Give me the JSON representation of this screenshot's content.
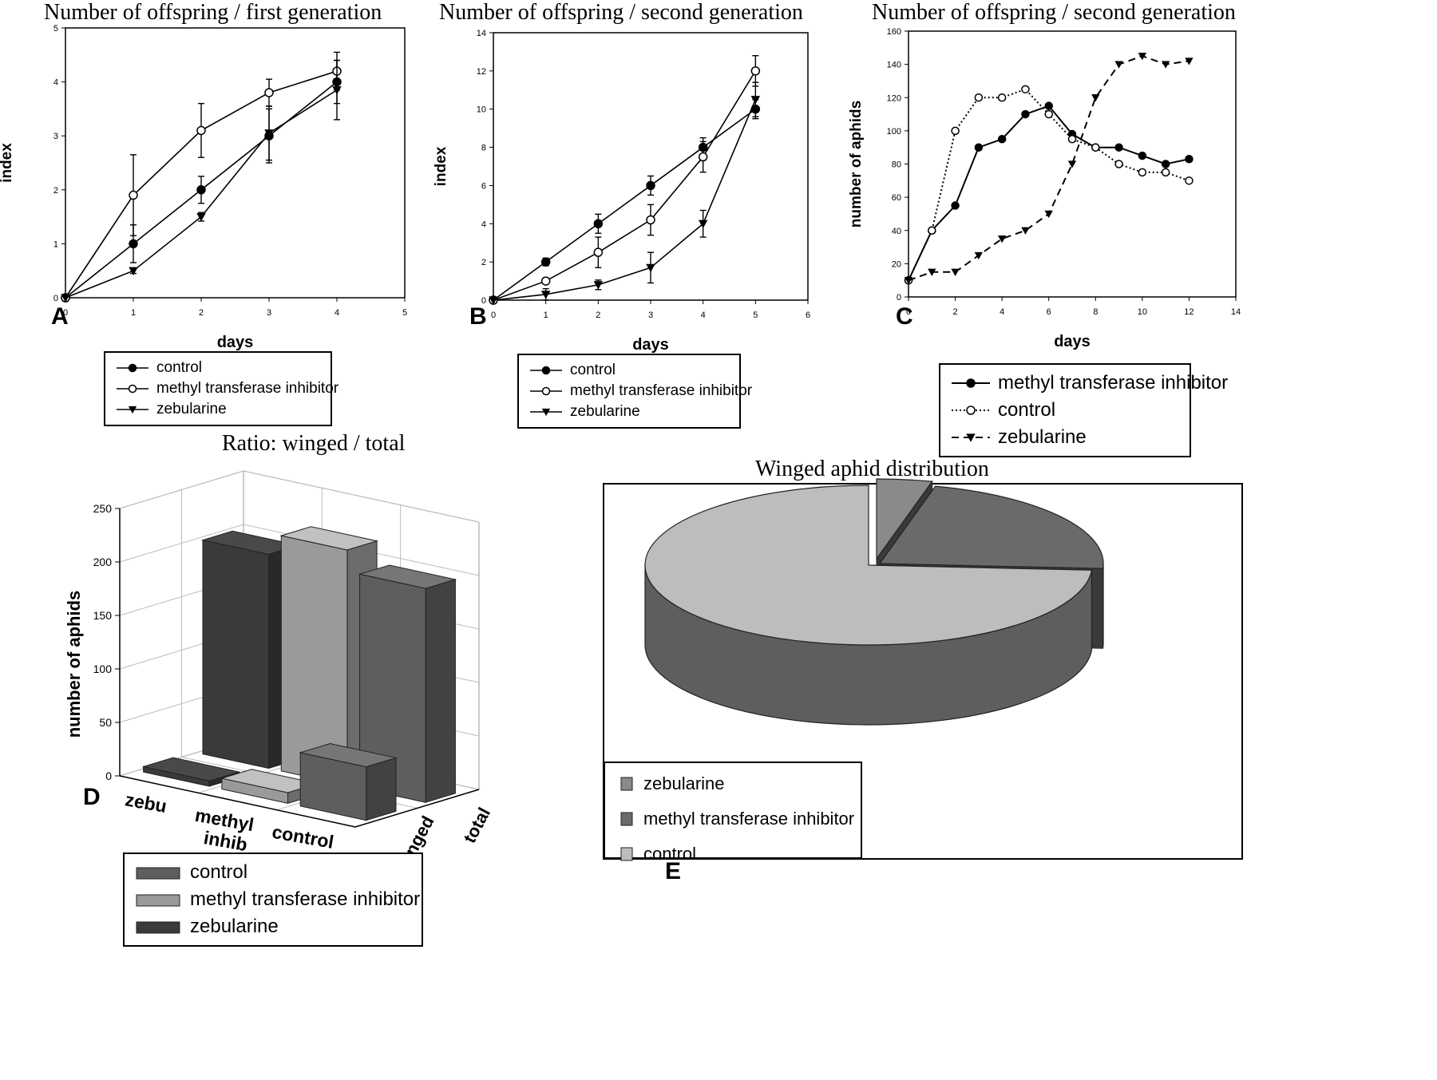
{
  "panels": {
    "A": {
      "label": "A",
      "title": "Number of offspring / first generation"
    },
    "B": {
      "label": "B",
      "title": "Number of offspring / second generation"
    },
    "C": {
      "label": "C",
      "title": "Number of offspring / second generation"
    },
    "D": {
      "label": "D",
      "title": "Ratio: winged / total"
    },
    "E": {
      "label": "E",
      "title": "Winged aphid distribution"
    }
  },
  "chart_data": [
    {
      "id": "A",
      "type": "line",
      "title": "Number of offspring / first generation",
      "xlabel": "days",
      "ylabel": "index",
      "xlim": [
        0,
        5
      ],
      "ylim": [
        0,
        5
      ],
      "x": [
        0,
        1,
        2,
        3,
        4
      ],
      "series": [
        {
          "name": "control",
          "values": [
            0,
            1.0,
            2.0,
            3.0,
            4.0
          ],
          "errors": [
            0,
            0.35,
            0.25,
            0.5,
            0.4
          ],
          "marker": "filled-circle"
        },
        {
          "name": "methyl transferase inhibitor",
          "values": [
            0,
            1.9,
            3.1,
            3.8,
            4.2
          ],
          "errors": [
            0,
            0.75,
            0.5,
            0.25,
            0.35
          ],
          "marker": "open-circle"
        },
        {
          "name": "zebularine",
          "values": [
            0,
            0.5,
            1.5,
            3.05,
            3.85
          ],
          "errors": [
            0,
            0.05,
            0.08,
            0.5,
            0.55
          ],
          "marker": "filled-triangle-down"
        }
      ],
      "legend": {
        "placement": "below"
      }
    },
    {
      "id": "B",
      "type": "line",
      "title": "Number of offspring / second generation",
      "xlabel": "days",
      "ylabel": "index",
      "xlim": [
        0,
        6
      ],
      "ylim": [
        0,
        14
      ],
      "x": [
        0,
        1,
        2,
        3,
        4,
        5
      ],
      "series": [
        {
          "name": "control",
          "values": [
            0,
            2.0,
            4.0,
            6.0,
            8.0,
            10.0
          ],
          "errors": [
            0,
            0.2,
            0.5,
            0.5,
            0.5,
            0.5
          ],
          "marker": "filled-circle"
        },
        {
          "name": "methyl transferase inhibitor",
          "values": [
            0,
            1.0,
            2.5,
            4.2,
            7.5,
            12.0
          ],
          "errors": [
            0,
            0.1,
            0.8,
            0.8,
            0.8,
            0.8
          ],
          "marker": "open-circle"
        },
        {
          "name": "zebularine",
          "values": [
            0,
            0.3,
            0.8,
            1.7,
            4.0,
            10.5
          ],
          "errors": [
            0,
            0.3,
            0.25,
            0.8,
            0.7,
            0.9
          ],
          "marker": "filled-triangle-down"
        }
      ],
      "legend": {
        "placement": "below"
      }
    },
    {
      "id": "C",
      "type": "line",
      "title": "Number of offspring / second generation",
      "xlabel": "days",
      "ylabel": "number of aphids",
      "xlim": [
        0,
        14
      ],
      "ylim": [
        0,
        160
      ],
      "x": [
        0,
        1,
        2,
        3,
        4,
        5,
        6,
        7,
        8,
        9,
        10,
        11,
        12
      ],
      "series": [
        {
          "name": "methyl transferase inhibitor",
          "values": [
            10,
            40,
            55,
            90,
            95,
            110,
            115,
            98,
            90,
            90,
            85,
            80,
            83
          ],
          "marker": "filled-circle",
          "line": "solid"
        },
        {
          "name": "control",
          "values": [
            10,
            40,
            100,
            120,
            120,
            125,
            110,
            95,
            90,
            80,
            75,
            75,
            70
          ],
          "marker": "open-circle",
          "line": "dotted"
        },
        {
          "name": "zebularine",
          "values": [
            10,
            15,
            15,
            25,
            35,
            40,
            50,
            80,
            120,
            140,
            145,
            140,
            142
          ],
          "marker": "filled-triangle-down",
          "line": "dashed"
        }
      ],
      "legend": {
        "placement": "below"
      }
    },
    {
      "id": "D",
      "type": "bar",
      "title": "Ratio: winged / total",
      "ylabel": "number of aphids",
      "ylim": [
        0,
        250
      ],
      "yticks": [
        0,
        50,
        100,
        150,
        200,
        250
      ],
      "categories": [
        "zebu",
        "methyl inhib",
        "control"
      ],
      "depth_categories": [
        "winged",
        "total"
      ],
      "series": [
        {
          "name": "zebularine",
          "category": "zebu",
          "winged": 5,
          "total": 200,
          "color": "#3a3a3a"
        },
        {
          "name": "methyl transferase inhibitor",
          "category": "methyl inhib",
          "winged": 10,
          "total": 220,
          "color": "#9a9a9a"
        },
        {
          "name": "control",
          "category": "control",
          "winged": 50,
          "total": 200,
          "color": "#5e5e5e"
        }
      ],
      "legend": {
        "placement": "below",
        "order": [
          "control",
          "methyl transferase inhibitor",
          "zebularine"
        ]
      }
    },
    {
      "id": "E",
      "type": "pie",
      "title": "Winged aphid distribution",
      "slices": [
        {
          "name": "zebularine",
          "value": 4,
          "color": "#8a8a8a"
        },
        {
          "name": "methyl transferase inhibitor",
          "value": 22,
          "color": "#6a6a6a"
        },
        {
          "name": "control",
          "value": 74,
          "color": "#bdbdbd"
        }
      ],
      "legend": {
        "placement": "bottom-left"
      }
    }
  ]
}
